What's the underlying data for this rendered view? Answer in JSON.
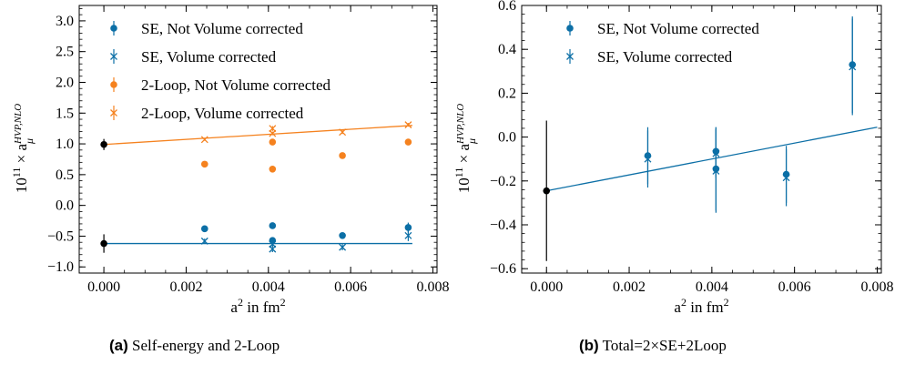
{
  "chart_data": [
    {
      "type": "scatter",
      "caption_tag": "(a)",
      "caption_text": "Self-energy and 2-Loop",
      "xlabel": "a² in fm²",
      "ylabel_main": "10",
      "ylabel_exp": "11",
      "ylabel_mid": "× a",
      "ylabel_sub": "μ",
      "ylabel_sup": "HVP,NLO",
      "xlim": [
        -0.0006,
        0.0081
      ],
      "ylim": [
        -1.1,
        3.25
      ],
      "xticks": [
        0.0,
        0.002,
        0.004,
        0.006,
        0.008
      ],
      "xtick_labels": [
        "0.000",
        "0.002",
        "0.004",
        "0.006",
        "0.008"
      ],
      "yticks": [
        -1.0,
        -0.5,
        0.0,
        0.5,
        1.0,
        1.5,
        2.0,
        2.5,
        3.0
      ],
      "ytick_labels": [
        "−1.0",
        "−0.5",
        "0.0",
        "0.5",
        "1.0",
        "1.5",
        "2.0",
        "2.5",
        "3.0"
      ],
      "legend_position": "top-left",
      "series": [
        {
          "name": "SE, Not Volume corrected",
          "marker": "dot",
          "color": "#0c6fa6",
          "points": [
            [
              0.00245,
              -0.38,
              0.04
            ],
            [
              0.0041,
              -0.33,
              0.03
            ],
            [
              0.0041,
              -0.57,
              0.04
            ],
            [
              0.0058,
              -0.49,
              0.04
            ],
            [
              0.0074,
              -0.36,
              0.08
            ]
          ]
        },
        {
          "name": "SE, Volume corrected",
          "marker": "x",
          "color": "#0c6fa6",
          "points": [
            [
              0.00245,
              -0.58,
              0.04
            ],
            [
              0.0041,
              -0.63,
              0.04
            ],
            [
              0.0041,
              -0.71,
              0.05
            ],
            [
              0.0058,
              -0.68,
              0.05
            ],
            [
              0.0074,
              -0.49,
              0.09
            ]
          ]
        },
        {
          "name": "2-Loop, Not Volume corrected",
          "marker": "dot",
          "color": "#f5821f",
          "points": [
            [
              0.00245,
              0.67,
              0.02
            ],
            [
              0.0041,
              1.03,
              0.03
            ],
            [
              0.0041,
              0.59,
              0.03
            ],
            [
              0.0058,
              0.81,
              0.03
            ],
            [
              0.0074,
              1.03,
              0.03
            ]
          ]
        },
        {
          "name": "2-Loop, Volume corrected",
          "marker": "x",
          "color": "#f5821f",
          "points": [
            [
              0.00245,
              1.07,
              0.02
            ],
            [
              0.0041,
              1.17,
              0.03
            ],
            [
              0.0041,
              1.25,
              0.04
            ],
            [
              0.0058,
              1.19,
              0.03
            ],
            [
              0.0074,
              1.31,
              0.03
            ]
          ]
        }
      ],
      "extrapolated": [
        {
          "x": 0.0,
          "y": -0.62,
          "err": 0.15,
          "color": "#000000"
        },
        {
          "x": 0.0,
          "y": 0.99,
          "err": 0.09,
          "color": "#000000"
        }
      ],
      "fit_lines": [
        {
          "color": "#0c6fa6",
          "x": [
            0.0,
            0.0075
          ],
          "y": [
            -0.62,
            -0.62
          ]
        },
        {
          "color": "#f5821f",
          "x": [
            0.0,
            0.0075
          ],
          "y": [
            0.99,
            1.3
          ]
        }
      ]
    },
    {
      "type": "scatter",
      "caption_tag": "(b)",
      "caption_text": "Total=2×SE+2Loop",
      "xlabel": "a² in fm²",
      "ylabel_main": "10",
      "ylabel_exp": "11",
      "ylabel_mid": "× a",
      "ylabel_sub": "μ",
      "ylabel_sup": "HVP,NLO",
      "xlim": [
        -0.0006,
        0.0081
      ],
      "ylim": [
        -0.62,
        0.6
      ],
      "xticks": [
        0.0,
        0.002,
        0.004,
        0.006,
        0.008
      ],
      "xtick_labels": [
        "0.000",
        "0.002",
        "0.004",
        "0.006",
        "0.008"
      ],
      "yticks": [
        -0.6,
        -0.4,
        -0.2,
        0.0,
        0.2,
        0.4,
        0.6
      ],
      "ytick_labels": [
        "−0.6",
        "−0.4",
        "−0.2",
        "0.0",
        "0.2",
        "0.4",
        "0.6"
      ],
      "legend_position": "top-left",
      "series": [
        {
          "name": "SE, Not Volume corrected",
          "marker": "dot",
          "color": "#0c6fa6",
          "points": [
            [
              0.00245,
              -0.085,
              0.13
            ],
            [
              0.0041,
              -0.065,
              0.11
            ],
            [
              0.0041,
              -0.145,
              0.19
            ],
            [
              0.0058,
              -0.17,
              0.13
            ],
            [
              0.0074,
              0.33,
              0.22
            ]
          ]
        },
        {
          "name": "SE, Volume corrected",
          "marker": "x",
          "color": "#0c6fa6",
          "points": [
            [
              0.00245,
              -0.1,
              0.13
            ],
            [
              0.0041,
              -0.075,
              0.11
            ],
            [
              0.0041,
              -0.155,
              0.19
            ],
            [
              0.0058,
              -0.185,
              0.13
            ],
            [
              0.0074,
              0.32,
              0.22
            ]
          ]
        }
      ],
      "extrapolated": [
        {
          "x": 0.0,
          "y": -0.245,
          "err": 0.32,
          "color": "#000000"
        }
      ],
      "fit_lines": [
        {
          "color": "#0c6fa6",
          "x": [
            0.0,
            0.008
          ],
          "y": [
            -0.245,
            0.045
          ]
        }
      ]
    }
  ]
}
